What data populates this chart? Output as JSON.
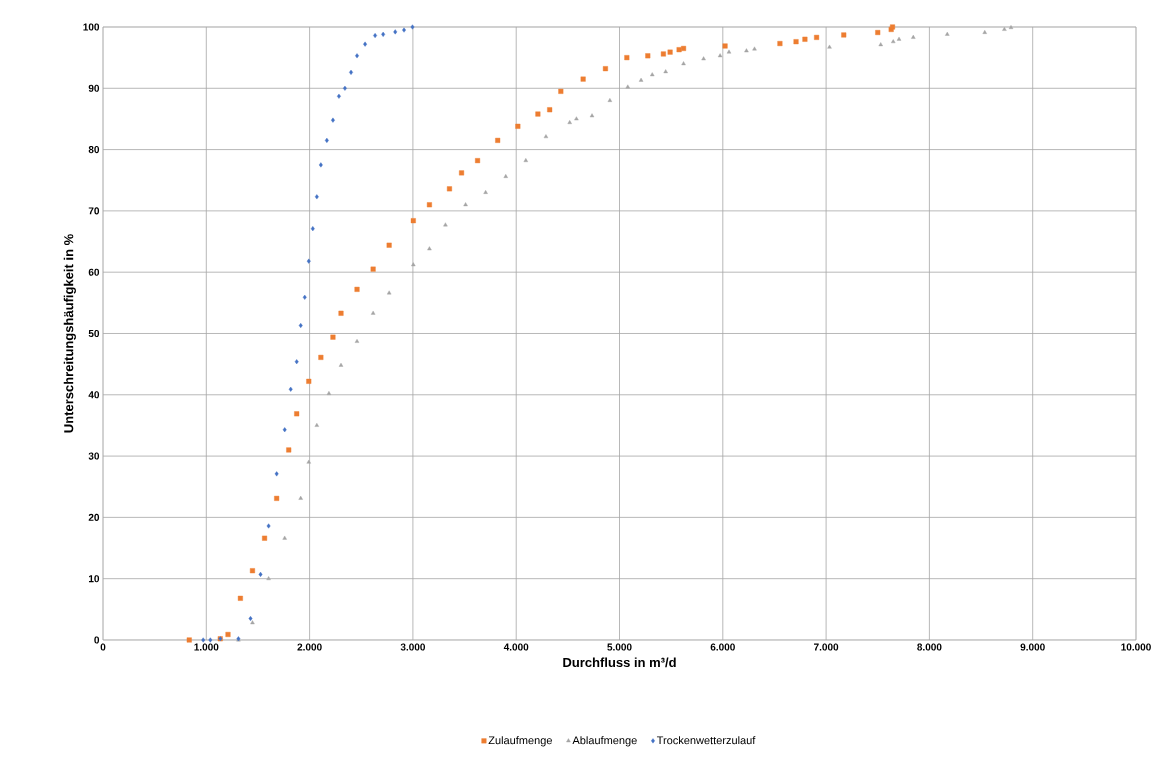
{
  "chart_data": {
    "type": "scatter",
    "xlabel": "Durchfluss in m³/d",
    "ylabel": "Unterschreitungshäufigkeit in %",
    "xlim": [
      0,
      10000
    ],
    "ylim": [
      0,
      100
    ],
    "xticks": [
      0,
      {
        "value": 1000,
        "label": "1.000"
      },
      {
        "value": 2000,
        "label": "2.000"
      },
      {
        "value": 3000,
        "label": "3.000"
      },
      {
        "value": 4000,
        "label": "4.000"
      },
      {
        "value": 5000,
        "label": "5.000"
      },
      {
        "value": 6000,
        "label": "6.000"
      },
      {
        "value": 7000,
        "label": "7.000"
      },
      {
        "value": 8000,
        "label": "8.000"
      },
      {
        "value": 9000,
        "label": "9.000"
      },
      {
        "value": 10000,
        "label": "10.000"
      }
    ],
    "yticks": [
      0,
      10,
      20,
      30,
      40,
      50,
      60,
      70,
      80,
      90,
      100
    ],
    "grid": true,
    "legend": "bottom",
    "series": [
      {
        "name": "Zulaufmenge",
        "color": "#ed7d31",
        "marker": "square",
        "x": [
          835,
          1135,
          1210,
          1330,
          1447,
          1564,
          1681,
          1798,
          1875,
          1992,
          2109,
          2226,
          2304,
          2459,
          2615,
          2770,
          3004,
          3160,
          3354,
          3471,
          3626,
          3821,
          4016,
          4210,
          4324,
          4432,
          4648,
          4864,
          5071,
          5274,
          5425,
          5490,
          5577,
          5620,
          6022,
          6553,
          6709,
          6795,
          6908,
          7171,
          7500,
          7630,
          7643
        ],
        "values": [
          0,
          0.2,
          0.9,
          6.8,
          11.3,
          16.6,
          23.1,
          31,
          36.9,
          42.2,
          46.1,
          49.4,
          53.3,
          57.2,
          60.5,
          64.4,
          68.4,
          71,
          73.6,
          76.2,
          78.2,
          81.5,
          83.8,
          85.8,
          86.5,
          89.5,
          91.5,
          93.2,
          95,
          95.3,
          95.6,
          95.9,
          96.3,
          96.5,
          96.9,
          97.3,
          97.6,
          98,
          98.3,
          98.7,
          99.1,
          99.6,
          100
        ]
      },
      {
        "name": "Ablaufmenge",
        "color": "#a5a5a5",
        "marker": "triangle",
        "x": [
          1311,
          1447,
          1603,
          1759,
          1914,
          1992,
          2070,
          2187,
          2304,
          2459,
          2615,
          2770,
          3004,
          3160,
          3315,
          3510,
          3704,
          3899,
          4093,
          4288,
          4518,
          4583,
          4734,
          4907,
          5080,
          5209,
          5317,
          5447,
          5620,
          5814,
          5974,
          6060,
          6229,
          6307,
          7033,
          7529,
          7650,
          7706,
          7844,
          8173,
          8536,
          8726,
          8790
        ],
        "values": [
          0,
          2.8,
          10,
          16.6,
          23.1,
          29,
          35,
          40.2,
          44.8,
          48.7,
          53.3,
          56.6,
          61.2,
          63.8,
          67.7,
          71,
          73,
          75.6,
          78.2,
          82.1,
          84.4,
          85,
          85.5,
          88,
          90.2,
          91.3,
          92.2,
          92.7,
          94,
          94.8,
          95.3,
          95.9,
          96.1,
          96.4,
          96.7,
          97.1,
          97.6,
          98,
          98.3,
          98.8,
          99.1,
          99.6,
          99.9
        ]
      },
      {
        "name": "Trockenwetterzulauf",
        "color": "#4472c4",
        "marker": "diamond",
        "x": [
          970,
          1039,
          1136,
          1311,
          1428,
          1525,
          1603,
          1681,
          1759,
          1817,
          1875,
          1914,
          1953,
          1992,
          2031,
          2070,
          2109,
          2167,
          2226,
          2284,
          2342,
          2401,
          2459,
          2537,
          2634,
          2712,
          2829,
          2914,
          2996
        ],
        "values": [
          0,
          0,
          0.2,
          0.2,
          3.5,
          10.7,
          18.6,
          27.1,
          34.3,
          40.9,
          45.4,
          51.3,
          55.9,
          61.8,
          67.1,
          72.3,
          77.5,
          81.5,
          84.8,
          88.7,
          90,
          92.6,
          95.3,
          97.2,
          98.6,
          98.8,
          99.2,
          99.5,
          100
        ]
      }
    ]
  }
}
